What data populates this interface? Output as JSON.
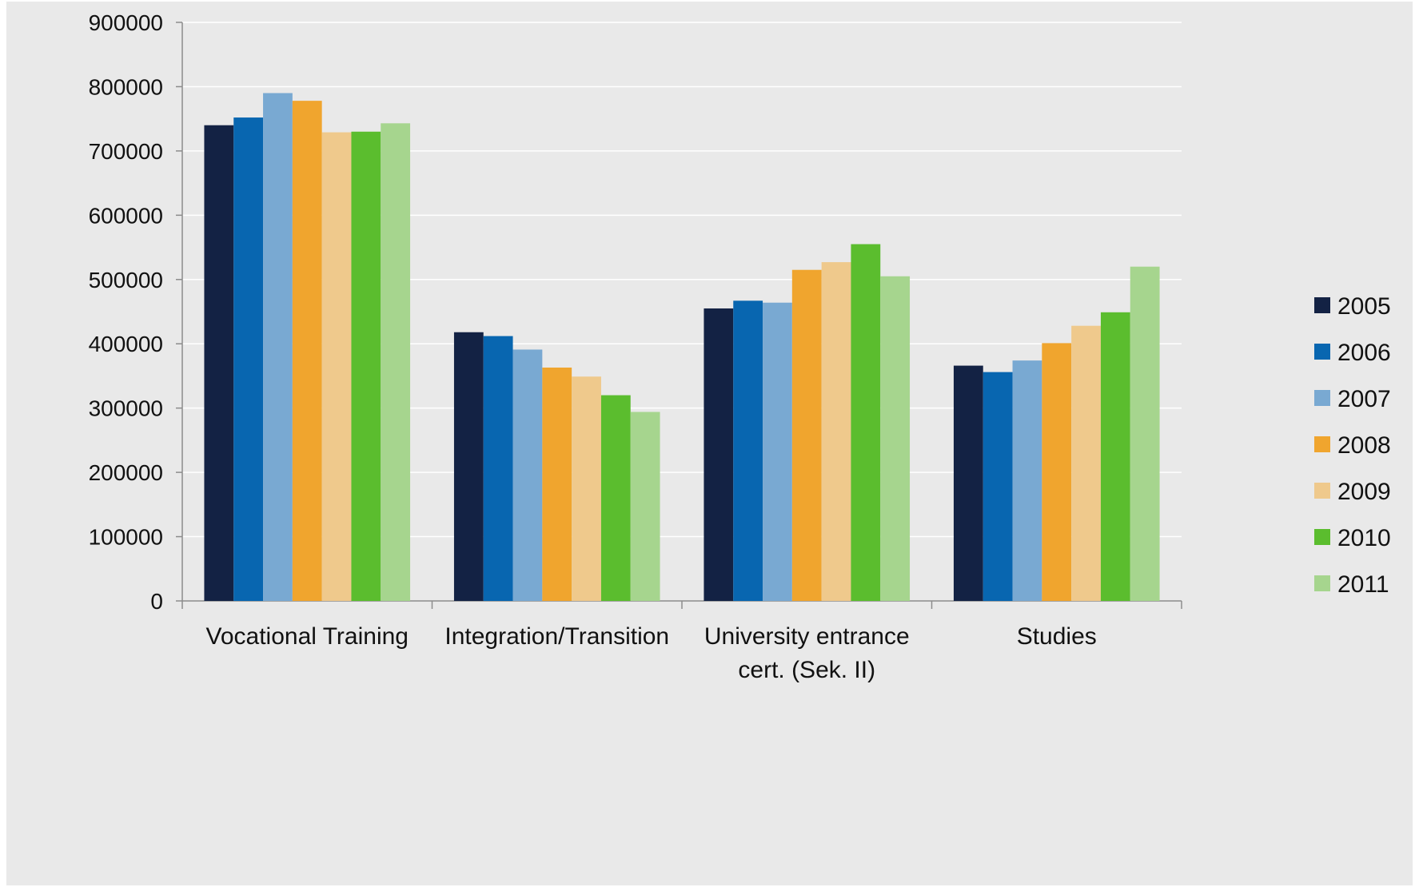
{
  "chart_data": {
    "type": "bar",
    "title": "",
    "xlabel": "",
    "ylabel": "",
    "ylim": [
      0,
      900000
    ],
    "yticks": [
      0,
      100000,
      200000,
      300000,
      400000,
      500000,
      600000,
      700000,
      800000,
      900000
    ],
    "ytick_labels": [
      "0",
      "100000",
      "200000",
      "300000",
      "400000",
      "500000",
      "600000",
      "700000",
      "800000",
      "900000"
    ],
    "grid": true,
    "legend_position": "right",
    "categories": [
      [
        "Vocational Training"
      ],
      [
        "Integration/Transition"
      ],
      [
        "University entrance",
        "cert. (Sek. II)"
      ],
      [
        "Studies"
      ]
    ],
    "series": [
      {
        "name": "2005",
        "color": "#132244",
        "values": [
          740000,
          418000,
          455000,
          366000
        ]
      },
      {
        "name": "2006",
        "color": "#0866b0",
        "values": [
          752000,
          412000,
          467000,
          356000
        ]
      },
      {
        "name": "2007",
        "color": "#79a9d2",
        "values": [
          790000,
          391000,
          464000,
          374000
        ]
      },
      {
        "name": "2008",
        "color": "#f0a52e",
        "values": [
          778000,
          363000,
          515000,
          401000
        ]
      },
      {
        "name": "2009",
        "color": "#efc98c",
        "values": [
          729000,
          349000,
          527000,
          428000
        ]
      },
      {
        "name": "2010",
        "color": "#5bbd2e",
        "values": [
          730000,
          320000,
          555000,
          449000
        ]
      },
      {
        "name": "2011",
        "color": "#a6d58e",
        "values": [
          743000,
          294000,
          505000,
          520000
        ]
      }
    ]
  }
}
